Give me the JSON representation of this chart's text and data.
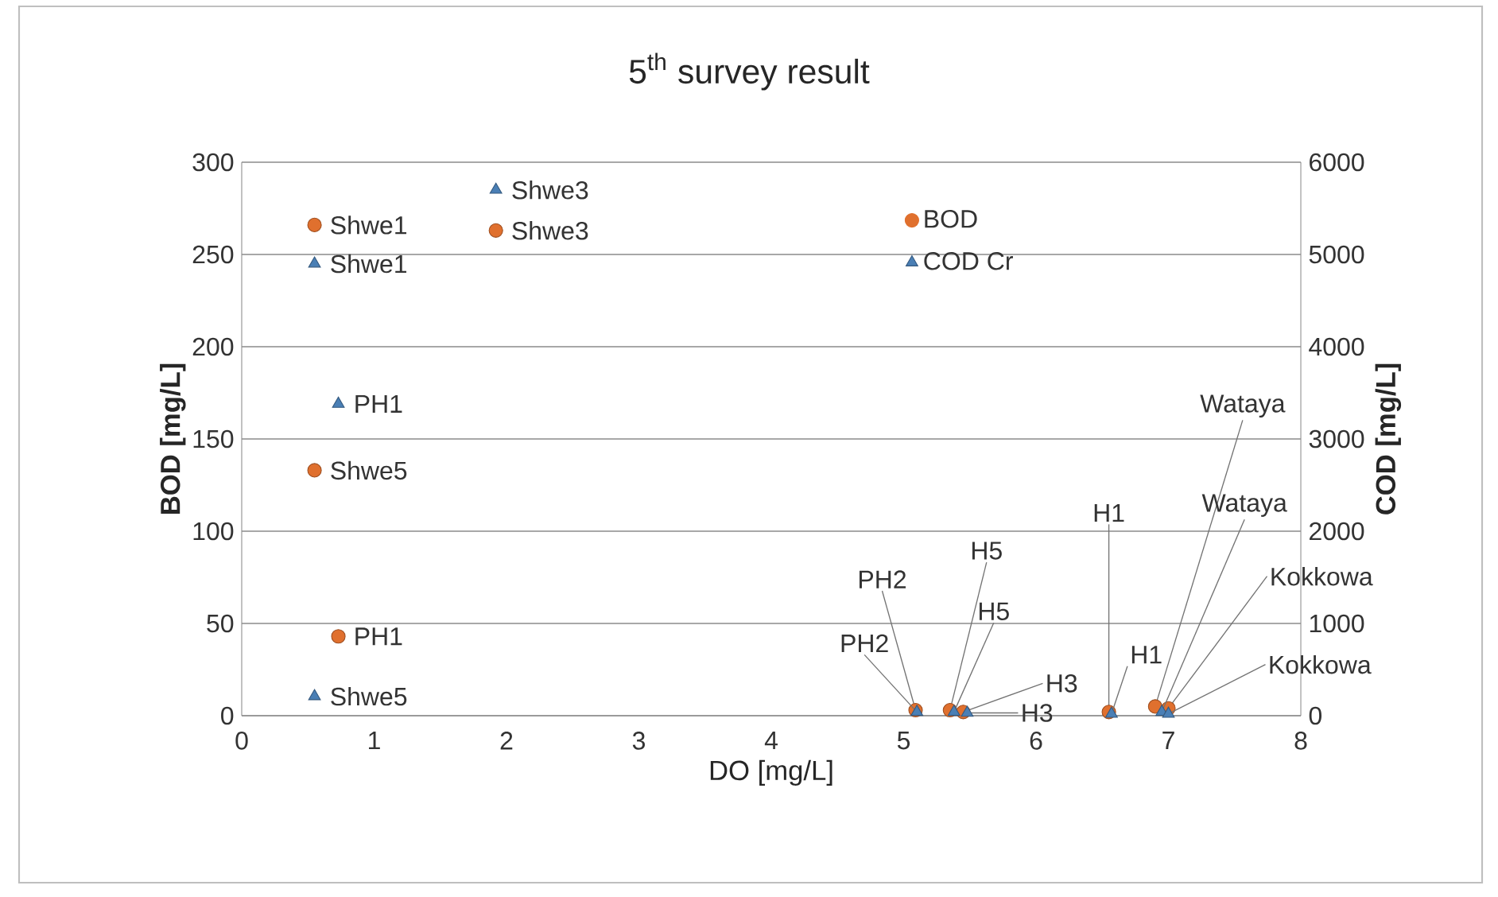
{
  "chart_data": {
    "type": "scatter",
    "title": "5$^{th}$ survey result",
    "xlabel": "DO [mg/L]",
    "ylabel": "BOD [mg/L]",
    "y2label": "COD [mg/L]",
    "xlim": [
      0,
      8
    ],
    "xticks": [
      0,
      1,
      2,
      3,
      4,
      5,
      6,
      7,
      8
    ],
    "ylim": [
      0,
      300
    ],
    "yticks": [
      0,
      50,
      100,
      150,
      200,
      250,
      300
    ],
    "y2lim": [
      0,
      6000
    ],
    "y2ticks": [
      0,
      1000,
      2000,
      3000,
      4000,
      5000,
      6000
    ],
    "grid": "y",
    "legend": "top right",
    "series": [
      {
        "name": "BOD",
        "color": "#e0702e",
        "marker": "circle",
        "x": [
          0.55,
          1.92,
          0.55,
          0.73,
          5.09,
          5.35,
          5.45,
          6.55,
          6.9,
          7.0
        ],
        "values": [
          266,
          263,
          133,
          43,
          3,
          3,
          2,
          2,
          5,
          4
        ],
        "value_labels": [
          "Shwe1",
          "Shwe3",
          "Shwe5",
          "PH1",
          "PH2",
          "H5",
          "H3",
          "H1",
          "Wataya",
          "Kokkowa"
        ]
      },
      {
        "name": "COD Cr",
        "color": "#4a7fb5",
        "marker": "triangle",
        "axis": "y2",
        "x": [
          0.55,
          1.92,
          0.55,
          0.73,
          5.1,
          5.38,
          5.48,
          6.57,
          6.95,
          7.0
        ],
        "values": [
          4900,
          5700,
          210,
          3380,
          40,
          40,
          30,
          20,
          40,
          20
        ],
        "value_labels": [
          "Shwe1",
          "Shwe3",
          "Shwe5",
          "PH1",
          "PH2",
          "H5",
          "H3",
          "H1",
          "Wataya",
          "Kokkowa"
        ]
      }
    ]
  }
}
